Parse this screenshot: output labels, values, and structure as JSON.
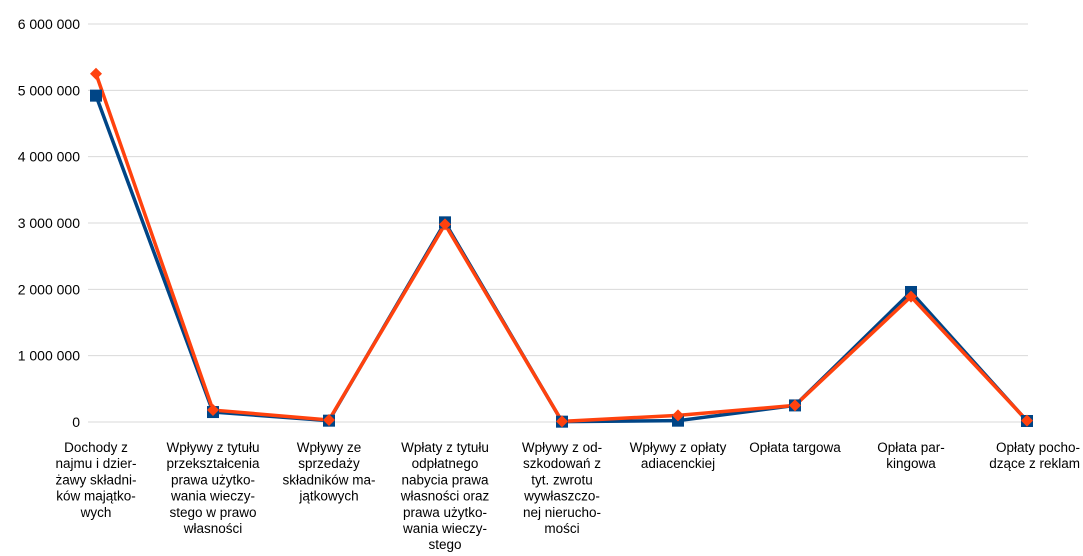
{
  "chart_data": {
    "type": "line",
    "title": "",
    "xlabel": "",
    "ylabel": "",
    "ylim": [
      0,
      6000000
    ],
    "y_ticks": [
      "0",
      "1 000 000",
      "2 000 000",
      "3 000 000",
      "4 000 000",
      "5 000 000",
      "6 000 000"
    ],
    "grid": true,
    "legend": "none",
    "categories": [
      [
        "Dochody z",
        "najmu i dzier-",
        "żawy składni-",
        "ków majątko-",
        "wych"
      ],
      [
        "Wpływy z tytułu",
        "przekształcenia",
        "prawa użytko-",
        "wania wieczy-",
        "stego w prawo",
        "własności"
      ],
      [
        "Wpływy ze",
        "sprzedaży",
        "składników ma-",
        "jątkowych"
      ],
      [
        "Wpłaty z tytułu",
        "odpłatnego",
        "nabycia prawa",
        "własności oraz",
        "prawa użytko-",
        "wania wieczy-",
        "stego"
      ],
      [
        "Wpływy z od-",
        "szkodowań z",
        "tyt. zwrotu",
        "wywłaszczo-",
        "nej nierucho-",
        "mości"
      ],
      [
        "Wpływy z opłaty",
        "adiacenckiej"
      ],
      [
        "Opłata targowa"
      ],
      [
        "Opłata par-",
        "kingowa"
      ],
      [
        "Opłaty pocho-",
        "dzące z reklam"
      ]
    ],
    "series": [
      {
        "marker": "square",
        "color": "#004586",
        "values": [
          4920000,
          150000,
          20000,
          3010000,
          5000,
          20000,
          250000,
          1960000,
          15000
        ]
      },
      {
        "marker": "diamond",
        "color": "#ff420e",
        "values": [
          5250000,
          180000,
          30000,
          2980000,
          10000,
          100000,
          250000,
          1890000,
          20000
        ]
      }
    ]
  }
}
